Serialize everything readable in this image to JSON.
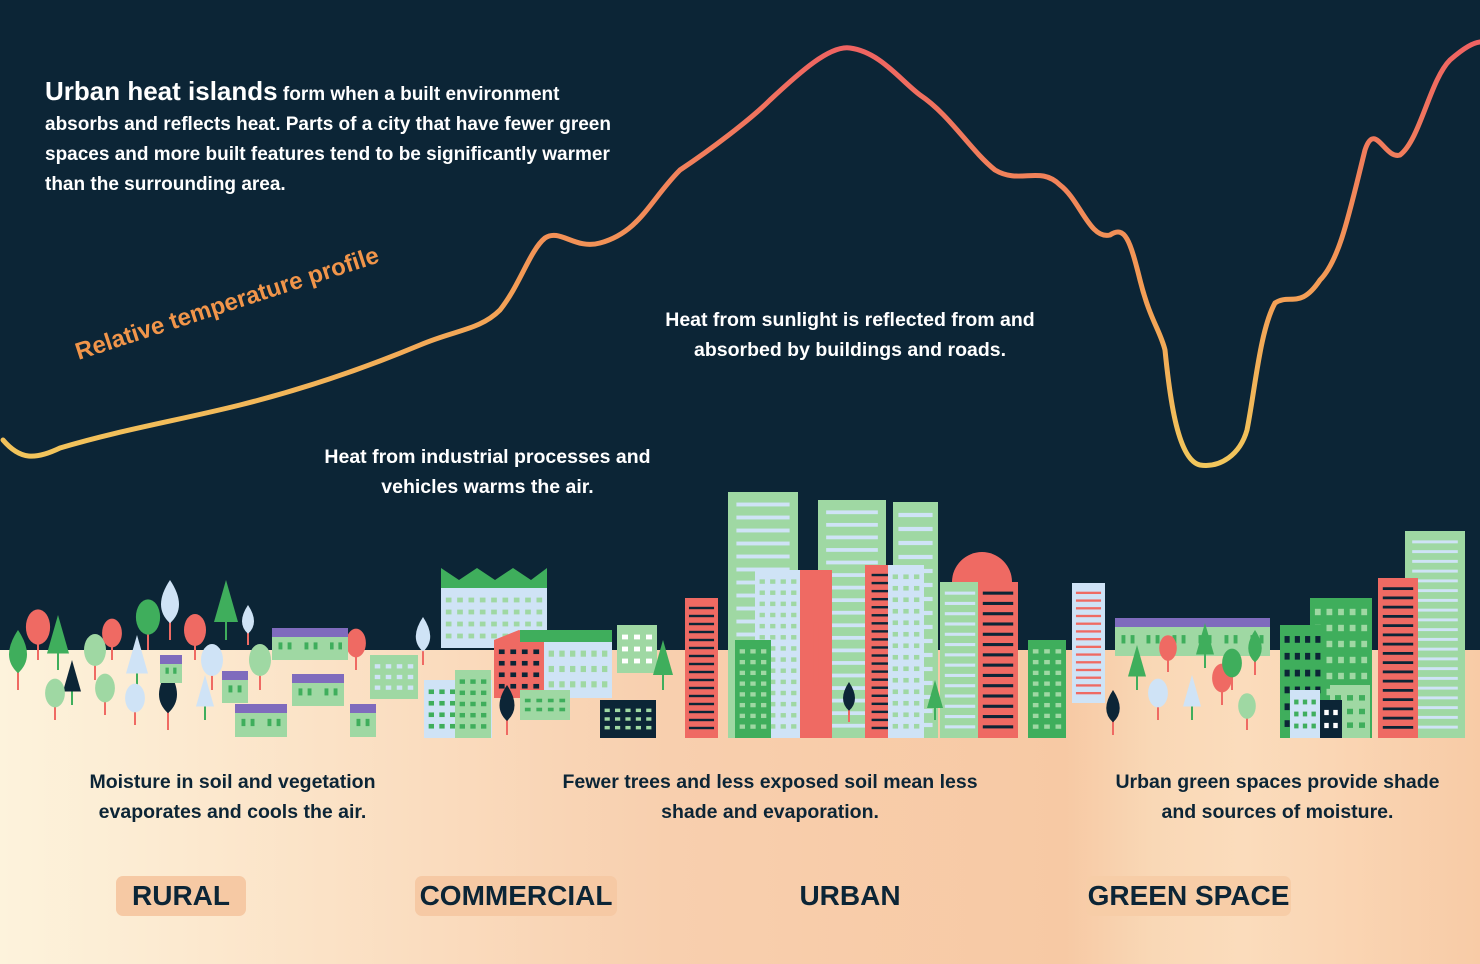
{
  "intro": {
    "lead": "Urban heat islands",
    "body": " form when a built environment absorbs and reflects heat. Parts of a city that have fewer green spaces and more built features tend to be significantly warmer than the surrounding area."
  },
  "curve_label": "Relative temperature profile",
  "notes": {
    "sunlight": "Heat from sunlight is reflected from and absorbed by buildings and roads.",
    "industrial": "Heat from industrial processes and vehicles warms the air."
  },
  "captions": {
    "rural": "Moisture in soil and vegetation evaporates and cools the air.",
    "urban": "Fewer trees and less exposed soil mean less shade and evaporation.",
    "green": "Urban green spaces provide shade and sources of moisture."
  },
  "zones": {
    "rural": "RURAL",
    "commercial": "COMMERCIAL",
    "urban": "URBAN",
    "green": "GREEN SPACE"
  },
  "colors": {
    "sky": "#0c2536",
    "curve_cool": "#f2c25a",
    "curve_warm": "#ef6a63",
    "label": "#f1954a",
    "building_green": "#9fd8a3",
    "building_dark_green": "#3fae5c",
    "building_blue": "#cfe3f6",
    "building_red": "#ef6a63",
    "building_purple": "#7f6bbd",
    "building_navy": "#0c2536"
  }
}
